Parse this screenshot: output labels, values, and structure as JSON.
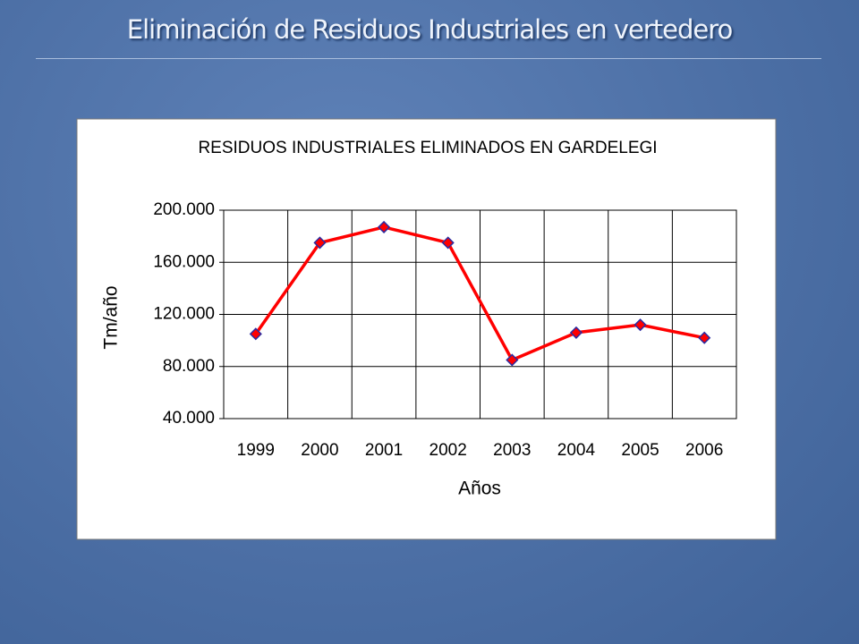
{
  "slide": {
    "title": "Eliminación de Residuos Industriales en vertedero"
  },
  "chart_data": {
    "type": "line",
    "title": "RESIDUOS INDUSTRIALES ELIMINADOS EN GARDELEGI",
    "x_label": "Años",
    "y_label": "Tm/año",
    "categories": [
      "1999",
      "2000",
      "2001",
      "2002",
      "2003",
      "2004",
      "2005",
      "2006"
    ],
    "series": [
      {
        "name": "Tm/año",
        "color": "#ff0000",
        "marker_color": "#2a2aa0",
        "values": [
          105000,
          175000,
          187000,
          175000,
          85000,
          106000,
          112000,
          102000
        ]
      }
    ],
    "ylim": [
      40000,
      200000
    ],
    "yticks": [
      {
        "value": 40000,
        "label": "40.000"
      },
      {
        "value": 80000,
        "label": "80.000"
      },
      {
        "value": 120000,
        "label": "120.000"
      },
      {
        "value": 160000,
        "label": "160.000"
      },
      {
        "value": 200000,
        "label": "200.000"
      }
    ],
    "grid": true
  }
}
